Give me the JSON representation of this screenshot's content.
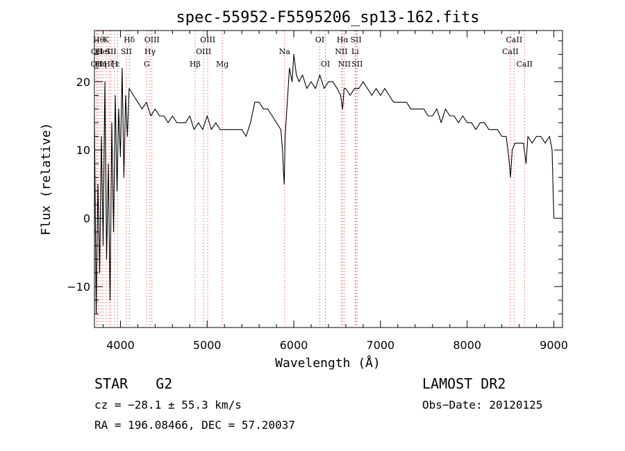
{
  "chart_data": {
    "type": "line",
    "title": "spec-55952-F5595206_sp13-162.fits",
    "xlabel": "Wavelength (Å)",
    "ylabel": "Flux (relative)",
    "xlim": [
      3700,
      9100
    ],
    "ylim": [
      -16,
      27.5
    ],
    "x_ticks": [
      4000,
      5000,
      6000,
      7000,
      8000,
      9000
    ],
    "y_ticks": [
      -10,
      0,
      10,
      20
    ],
    "grid": false,
    "series": [
      {
        "x": [
          3700,
          3720,
          3740,
          3760,
          3780,
          3800,
          3820,
          3840,
          3860,
          3880,
          3900,
          3920,
          3940,
          3960,
          3980,
          4000,
          4020,
          4040,
          4060,
          4080,
          4100,
          4150,
          4200,
          4250,
          4300,
          4350,
          4400,
          4450,
          4500,
          4550,
          4600,
          4650,
          4700,
          4750,
          4800,
          4850,
          4900,
          4950,
          5000,
          5050,
          5100,
          5150,
          5200,
          5250,
          5300,
          5350,
          5400,
          5450,
          5500,
          5550,
          5600,
          5650,
          5700,
          5750,
          5800,
          5850,
          5870,
          5880,
          5890,
          5900,
          5920,
          5950,
          5980,
          6000,
          6030,
          6060,
          6100,
          6150,
          6200,
          6250,
          6300,
          6350,
          6400,
          6450,
          6500,
          6540,
          6563,
          6580,
          6600,
          6650,
          6700,
          6750,
          6800,
          6850,
          6900,
          6950,
          7000,
          7050,
          7100,
          7150,
          7200,
          7250,
          7300,
          7350,
          7400,
          7450,
          7500,
          7550,
          7600,
          7650,
          7700,
          7750,
          7800,
          7850,
          7900,
          7950,
          8000,
          8050,
          8100,
          8150,
          8200,
          8250,
          8300,
          8350,
          8400,
          8450,
          8480,
          8500,
          8520,
          8550,
          8600,
          8650,
          8680,
          8700,
          8750,
          8800,
          8850,
          8900,
          8950,
          8980,
          9000
        ],
        "y": [
          15,
          -14,
          5,
          -8,
          12,
          -4,
          20,
          -6,
          8,
          -12,
          14,
          -2,
          18,
          4,
          16,
          9,
          22,
          6,
          18,
          12,
          19,
          18,
          17,
          16,
          17,
          15,
          16,
          15,
          15,
          14,
          15,
          14,
          14,
          14,
          15,
          13,
          14,
          13,
          15,
          13,
          14,
          13,
          13,
          13,
          13,
          13,
          13,
          12,
          14,
          17,
          17,
          16,
          16,
          15,
          14,
          13,
          10,
          7,
          5,
          12,
          16,
          22,
          20,
          24,
          21,
          20,
          21,
          19,
          20,
          19,
          21,
          19,
          20,
          20,
          19,
          18,
          16,
          19,
          19,
          18,
          19,
          19,
          20,
          19,
          18,
          19,
          18,
          19,
          18,
          17,
          17,
          17,
          17,
          16,
          16,
          16,
          16,
          15,
          15,
          16,
          14,
          16,
          15,
          15,
          14,
          15,
          14,
          14,
          13,
          14,
          14,
          13,
          13,
          13,
          12,
          12,
          9,
          6,
          10,
          11,
          11,
          11,
          8,
          12,
          11,
          12,
          12,
          11,
          12,
          10,
          0
        ]
      }
    ],
    "line_markers": [
      {
        "x": 3727,
        "label": "OII",
        "row": 2
      },
      {
        "x": 3730,
        "label": "OII",
        "row": 1
      },
      {
        "x": 3750,
        "label": "Hθ",
        "row": 0
      },
      {
        "x": 3775,
        "label": "Hη",
        "row": 2
      },
      {
        "x": 3797,
        "label": "HeI",
        "row": 1
      },
      {
        "x": 3835,
        "label": "K",
        "row": 0
      },
      {
        "x": 3869,
        "label": "Hζ",
        "row": 2
      },
      {
        "x": 3889,
        "label": "SII",
        "row": 1
      },
      {
        "x": 3934,
        "label": "H",
        "row": 2
      },
      {
        "x": 3969,
        "label": "ε",
        "row": 2
      },
      {
        "x": 4068,
        "label": "SII",
        "row": 1
      },
      {
        "x": 4102,
        "label": "Hδ",
        "row": 0
      },
      {
        "x": 4304,
        "label": "G",
        "row": 2
      },
      {
        "x": 4341,
        "label": "Hγ",
        "row": 1
      },
      {
        "x": 4363,
        "label": "OIII",
        "row": 0
      },
      {
        "x": 4861,
        "label": "Hβ",
        "row": 2
      },
      {
        "x": 4959,
        "label": "OIII",
        "row": 1
      },
      {
        "x": 5007,
        "label": "OIII",
        "row": 0
      },
      {
        "x": 5175,
        "label": "Mg",
        "row": 2
      },
      {
        "x": 5894,
        "label": "Na",
        "row": 1
      },
      {
        "x": 6300,
        "label": "OI",
        "row": 0
      },
      {
        "x": 6364,
        "label": "OI",
        "row": 2
      },
      {
        "x": 6548,
        "label": "NII",
        "row": 1
      },
      {
        "x": 6563,
        "label": "Hα",
        "row": 0
      },
      {
        "x": 6583,
        "label": "NII",
        "row": 2
      },
      {
        "x": 6707,
        "label": "Li",
        "row": 1
      },
      {
        "x": 6717,
        "label": "SII",
        "row": 0
      },
      {
        "x": 6731,
        "label": "SII",
        "row": 2
      },
      {
        "x": 8498,
        "label": "CaII",
        "row": 1
      },
      {
        "x": 8542,
        "label": "CaII",
        "row": 0
      },
      {
        "x": 8662,
        "label": "CaII",
        "row": 2
      }
    ],
    "colors": {
      "spectrum": "#000000",
      "line_markers": "#e06060",
      "frame": "#000000"
    }
  },
  "info": {
    "object_type": "STAR",
    "subclass": "G2",
    "survey": "LAMOST DR2",
    "velocity": "cz = −28.1 ± 55.3 km/s",
    "obs_date": "Obs−Date: 20120125",
    "coords": "RA = 196.08466, DEC =  57.20037"
  }
}
